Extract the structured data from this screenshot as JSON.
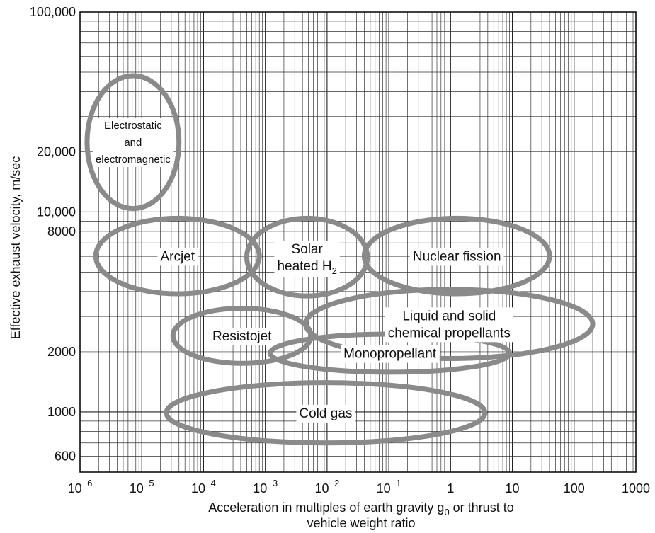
{
  "chart_data": {
    "type": "scatter",
    "title": "",
    "xlabel_line1": "Acceleration in multiples of earth gravity g",
    "xlabel_sub": "0",
    "xlabel_line1_tail": " or thrust to",
    "xlabel_line2": "vehicle weight ratio",
    "ylabel": "Effective exhaust velocity, m/sec",
    "x_scale": "log",
    "y_scale": "log",
    "xlim": [
      1e-06,
      1000
    ],
    "ylim": [
      500,
      100000
    ],
    "grid": true,
    "x_ticks": [
      {
        "value": 1e-06,
        "base": "10",
        "exp": "−6"
      },
      {
        "value": 1e-05,
        "base": "10",
        "exp": "−5"
      },
      {
        "value": 0.0001,
        "base": "10",
        "exp": "−4"
      },
      {
        "value": 0.001,
        "base": "10",
        "exp": "−3"
      },
      {
        "value": 0.01,
        "base": "10",
        "exp": "−2"
      },
      {
        "value": 0.1,
        "base": "10",
        "exp": "−1"
      },
      {
        "value": 1,
        "base": "1",
        "exp": ""
      },
      {
        "value": 10,
        "base": "10",
        "exp": ""
      },
      {
        "value": 100,
        "base": "100",
        "exp": ""
      },
      {
        "value": 1000,
        "base": "1000",
        "exp": ""
      }
    ],
    "y_ticks": [
      {
        "value": 600,
        "label": "600"
      },
      {
        "value": 1000,
        "label": "1000"
      },
      {
        "value": 2000,
        "label": "2000"
      },
      {
        "value": 8000,
        "label": "8000"
      },
      {
        "value": 10000,
        "label": "10,000"
      },
      {
        "value": 20000,
        "label": "20,000"
      },
      {
        "value": 100000,
        "label": "100,000"
      }
    ],
    "regions": [
      {
        "lines": [
          "Electrostatic",
          "and",
          "electromagnetic"
        ],
        "x_range": [
          1.3e-06,
          4e-05
        ],
        "y_range": [
          10400,
          48000
        ]
      },
      {
        "lines": [
          "Arcjet"
        ],
        "x_range": [
          1.8e-06,
          0.0008
        ],
        "y_range": [
          3900,
          9300
        ]
      },
      {
        "lines": [
          "Solar",
          "heated H"
        ],
        "subscript": "2",
        "x_range": [
          0.0005,
          0.045
        ],
        "y_range": [
          3800,
          9300
        ]
      },
      {
        "lines": [
          "Nuclear fission"
        ],
        "x_range": [
          0.04,
          40
        ],
        "y_range": [
          3900,
          9300
        ]
      },
      {
        "lines": [
          "Resistojet"
        ],
        "x_range": [
          3.2e-05,
          0.0055
        ],
        "y_range": [
          1750,
          3300
        ]
      },
      {
        "lines": [
          "Liquid and solid",
          "chemical propellants"
        ],
        "x_range": [
          0.0045,
          200
        ],
        "y_range": [
          1850,
          4100
        ]
      },
      {
        "lines": [
          "Monopropellant"
        ],
        "x_range": [
          0.0012,
          9
        ],
        "y_range": [
          1580,
          2450
        ]
      },
      {
        "lines": [
          "Cold gas"
        ],
        "x_range": [
          2.5e-05,
          3.6
        ],
        "y_range": [
          700,
          1400
        ]
      }
    ]
  }
}
